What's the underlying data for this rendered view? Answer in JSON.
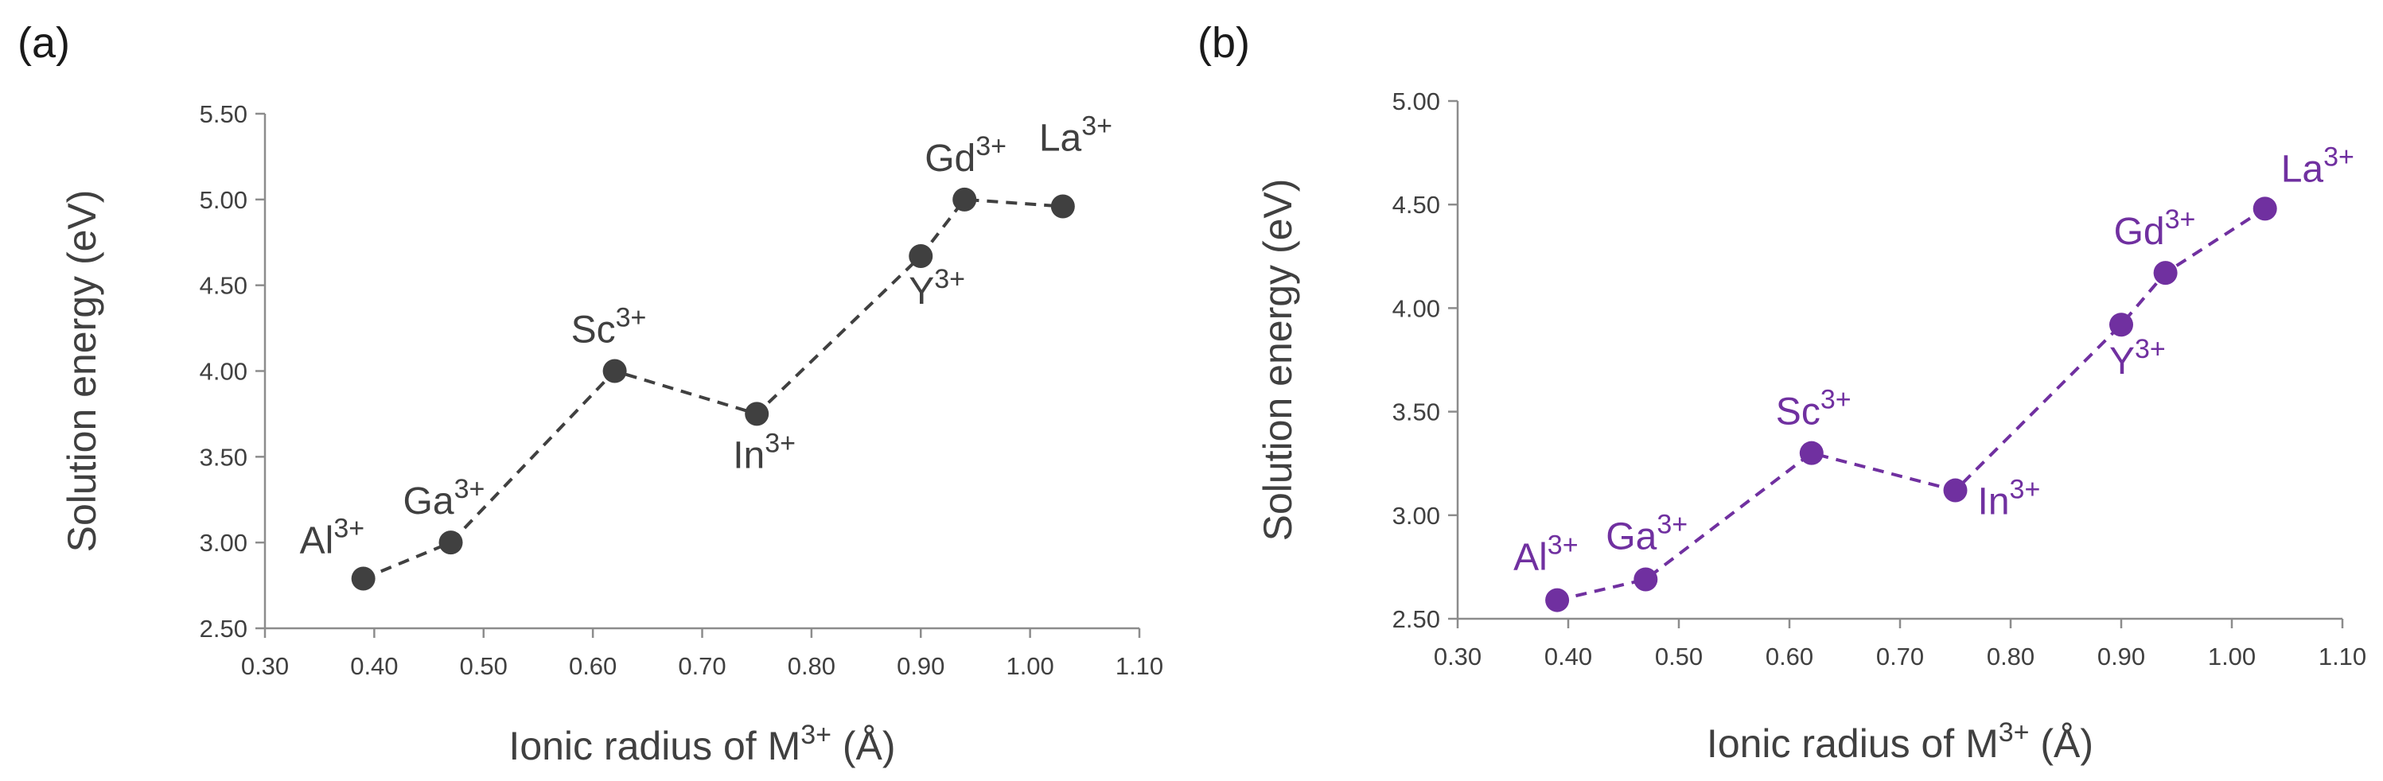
{
  "chart_data": [
    {
      "panel_label": "(a)",
      "type": "line",
      "line_style": "dashed",
      "color": "#404040",
      "ylabel": "Solution energy (eV)",
      "xlabel": {
        "main": "Ionic radius of M",
        "sup": "3+",
        "tail": " (Å)"
      },
      "xlim": [
        0.3,
        1.1
      ],
      "ylim": [
        2.5,
        5.5
      ],
      "xticks": [
        "0.30",
        "0.40",
        "0.50",
        "0.60",
        "0.70",
        "0.80",
        "0.90",
        "1.00",
        "1.10"
      ],
      "yticks": [
        "2.50",
        "3.00",
        "3.50",
        "4.00",
        "4.50",
        "5.00",
        "5.50"
      ],
      "points": [
        {
          "ion": "Al",
          "charge": "3+",
          "x": 0.39,
          "y": 2.79,
          "label_pos": "above"
        },
        {
          "ion": "Ga",
          "charge": "3+",
          "x": 0.47,
          "y": 3.0,
          "label_pos": "above"
        },
        {
          "ion": "Sc",
          "charge": "3+",
          "x": 0.62,
          "y": 4.0,
          "label_pos": "above"
        },
        {
          "ion": "In",
          "charge": "3+",
          "x": 0.75,
          "y": 3.75,
          "label_pos": "below"
        },
        {
          "ion": "Y",
          "charge": "3+",
          "x": 0.9,
          "y": 4.67,
          "label_pos": "below"
        },
        {
          "ion": "Gd",
          "charge": "3+",
          "x": 0.94,
          "y": 5.0,
          "label_pos": "above"
        },
        {
          "ion": "La",
          "charge": "3+",
          "x": 1.03,
          "y": 4.96,
          "label_pos": "above"
        }
      ]
    },
    {
      "panel_label": "(b)",
      "type": "line",
      "line_style": "dashed",
      "color": "#7030a0",
      "ylabel": "Solution energy (eV)",
      "xlabel": {
        "main": "Ionic radius of M",
        "sup": "3+",
        "tail": " (Å)"
      },
      "xlim": [
        0.3,
        1.1
      ],
      "ylim": [
        2.5,
        5.0
      ],
      "xticks": [
        "0.30",
        "0.40",
        "0.50",
        "0.60",
        "0.70",
        "0.80",
        "0.90",
        "1.00",
        "1.10"
      ],
      "yticks": [
        "2.50",
        "3.00",
        "3.50",
        "4.00",
        "4.50",
        "5.00"
      ],
      "points": [
        {
          "ion": "Al",
          "charge": "3+",
          "x": 0.39,
          "y": 2.59,
          "label_pos": "above"
        },
        {
          "ion": "Ga",
          "charge": "3+",
          "x": 0.47,
          "y": 2.69,
          "label_pos": "above"
        },
        {
          "ion": "Sc",
          "charge": "3+",
          "x": 0.62,
          "y": 3.3,
          "label_pos": "above"
        },
        {
          "ion": "In",
          "charge": "3+",
          "x": 0.75,
          "y": 3.12,
          "label_pos": "right"
        },
        {
          "ion": "Y",
          "charge": "3+",
          "x": 0.9,
          "y": 3.92,
          "label_pos": "below"
        },
        {
          "ion": "Gd",
          "charge": "3+",
          "x": 0.94,
          "y": 4.17,
          "label_pos": "above"
        },
        {
          "ion": "La",
          "charge": "3+",
          "x": 1.03,
          "y": 4.48,
          "label_pos": "above"
        }
      ]
    }
  ]
}
